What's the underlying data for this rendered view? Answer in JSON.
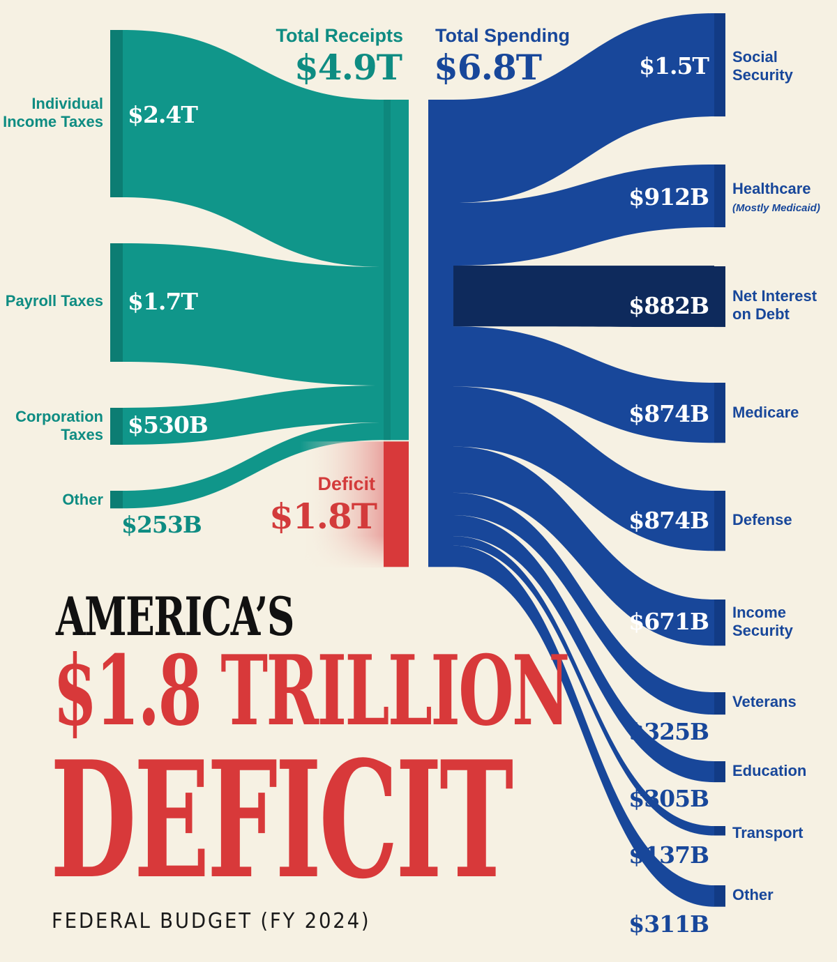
{
  "chart_data": {
    "type": "sankey",
    "title_line1": "AMERICA’S",
    "title_line2": "$1.8 TRILLION",
    "title_line3": "DEFICIT",
    "subtitle": "FEDERAL BUDGET (FY 2024)",
    "receipts_total": {
      "label": "Total Receipts",
      "value_label": "$4.9T",
      "value": 4.9
    },
    "spending_total": {
      "label": "Total Spending",
      "value_label": "$6.8T",
      "value": 6.8
    },
    "deficit": {
      "label": "Deficit",
      "value_label": "$1.8T",
      "value": 1.8
    },
    "receipts": [
      {
        "label_lines": [
          "Individual",
          "Income Taxes"
        ],
        "value_label": "$2.4T",
        "value": 2.4
      },
      {
        "label_lines": [
          "Payroll Taxes"
        ],
        "value_label": "$1.7T",
        "value": 1.7
      },
      {
        "label_lines": [
          "Corporation",
          "Taxes"
        ],
        "value_label": "$530B",
        "value": 0.53
      },
      {
        "label_lines": [
          "Other"
        ],
        "value_label": "$253B",
        "value": 0.253
      }
    ],
    "spending": [
      {
        "label_lines": [
          "Social",
          "Security"
        ],
        "value_label": "$1.5T",
        "value": 1.5
      },
      {
        "label_lines": [
          "Healthcare"
        ],
        "note": "(Mostly Medicaid)",
        "value_label": "$912B",
        "value": 0.912
      },
      {
        "label_lines": [
          "Net Interest",
          "on Debt"
        ],
        "value_label": "$882B",
        "value": 0.882
      },
      {
        "label_lines": [
          "Medicare"
        ],
        "value_label": "$874B",
        "value": 0.874
      },
      {
        "label_lines": [
          "Defense"
        ],
        "value_label": "$874B",
        "value": 0.874
      },
      {
        "label_lines": [
          "Income",
          "Security"
        ],
        "value_label": "$671B",
        "value": 0.671
      },
      {
        "label_lines": [
          "Veterans"
        ],
        "value_label": "$325B",
        "value": 0.325
      },
      {
        "label_lines": [
          "Education"
        ],
        "value_label": "$305B",
        "value": 0.305
      },
      {
        "label_lines": [
          "Transport"
        ],
        "value_label": "$137B",
        "value": 0.137
      },
      {
        "label_lines": [
          "Other"
        ],
        "value_label": "$311B",
        "value": 0.311
      }
    ],
    "colors": {
      "receipts": "#10968a",
      "receipts_dark": "#0c7d73",
      "receipts_label": "#0e8c82",
      "spending": "#18479a",
      "spending_dark": "#123b85",
      "interest": "#0e2a5c",
      "deficit": "#d8393a",
      "deficit_label": "#d33b3b",
      "background": "#f6f1e3"
    }
  }
}
